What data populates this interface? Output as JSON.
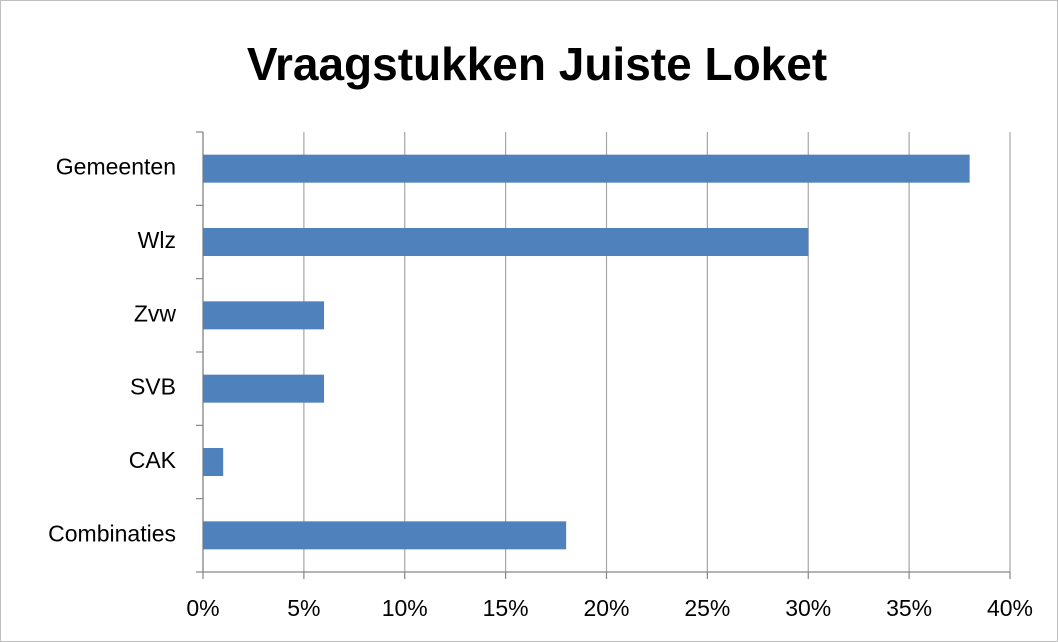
{
  "chart_data": {
    "type": "hbar",
    "title": "Vraagstukken Juiste Loket",
    "categories": [
      "Gemeenten",
      "Wlz",
      "Zvw",
      "SVB",
      "CAK",
      "Combinaties"
    ],
    "values": [
      38,
      30,
      6,
      6,
      1,
      18
    ],
    "color": "#4f81bd",
    "xlim": [
      0,
      40
    ],
    "xticks": [
      {
        "value": 0,
        "label": "0%"
      },
      {
        "value": 5,
        "label": "5%"
      },
      {
        "value": 10,
        "label": "10%"
      },
      {
        "value": 15,
        "label": "15%"
      },
      {
        "value": 20,
        "label": "20%"
      },
      {
        "value": 25,
        "label": "25%"
      },
      {
        "value": 30,
        "label": "30%"
      },
      {
        "value": 35,
        "label": "35%"
      },
      {
        "value": 40,
        "label": "40%"
      }
    ],
    "grid": true
  }
}
